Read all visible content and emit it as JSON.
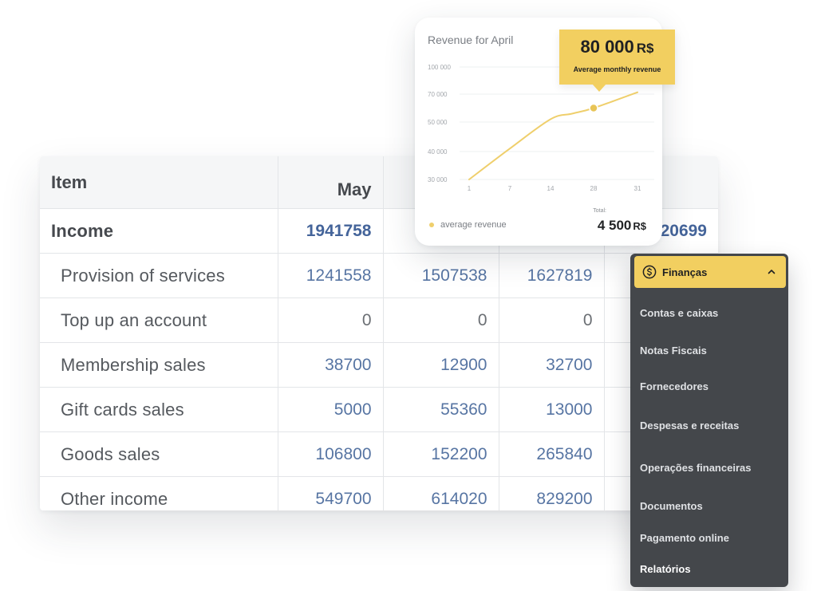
{
  "table": {
    "header": {
      "item": "Item",
      "months": [
        "May",
        "",
        "",
        ""
      ]
    },
    "income_row": {
      "label": "Income",
      "values": [
        "1941758",
        "",
        "",
        "20699"
      ]
    },
    "rows": [
      {
        "label": "Provision of services",
        "values": [
          "1241558",
          "1507538",
          "1627819",
          ""
        ]
      },
      {
        "label": "Top up an account",
        "values": [
          "0",
          "0",
          "0",
          ""
        ]
      },
      {
        "label": "Membership sales",
        "values": [
          "38700",
          "12900",
          "32700",
          ""
        ]
      },
      {
        "label": "Gift cards sales",
        "values": [
          "5000",
          "55360",
          "13000",
          ""
        ]
      },
      {
        "label": "Goods sales",
        "values": [
          "106800",
          "152200",
          "265840",
          ""
        ]
      },
      {
        "label": "Other income",
        "values": [
          "549700",
          "614020",
          "829200",
          ""
        ]
      }
    ]
  },
  "chart_card": {
    "title": "Revenue for April",
    "legend_label": "average revenue",
    "total_caption": "Total:",
    "total_value": "4 500",
    "total_currency": "R$",
    "tooltip": {
      "value": "80 000",
      "currency": "R$",
      "caption": "Average monthly revenue"
    }
  },
  "chart_data": {
    "type": "line",
    "title": "Revenue for April",
    "xlabel": "",
    "ylabel": "",
    "x_ticks": [
      "1",
      "7",
      "14",
      "28",
      "31"
    ],
    "y_ticks": [
      "30 000",
      "40 000",
      "50 000",
      "70 000",
      "100 000"
    ],
    "series": [
      {
        "name": "average revenue",
        "x": [
          1,
          7,
          14,
          21,
          28,
          31
        ],
        "y": [
          30000,
          41000,
          52000,
          56000,
          60000,
          72000
        ]
      }
    ],
    "highlight": {
      "x": 28,
      "y": 60000
    },
    "grid": true,
    "legend_position": "bottom-left"
  },
  "menu": {
    "header_label": "Finanças",
    "header_icon": "dollar-coin-icon",
    "items": [
      "Contas e caixas",
      "Notas Fiscais",
      "Fornecedores",
      "Despesas e receitas",
      "Operações financeiras",
      "Documentos",
      "Pagamento online",
      "Relatórios"
    ]
  },
  "colors": {
    "accent_yellow": "#f2cf60",
    "value_blue": "#5775a3",
    "menu_bg": "#44474b",
    "line_color": "#efcf6c"
  }
}
